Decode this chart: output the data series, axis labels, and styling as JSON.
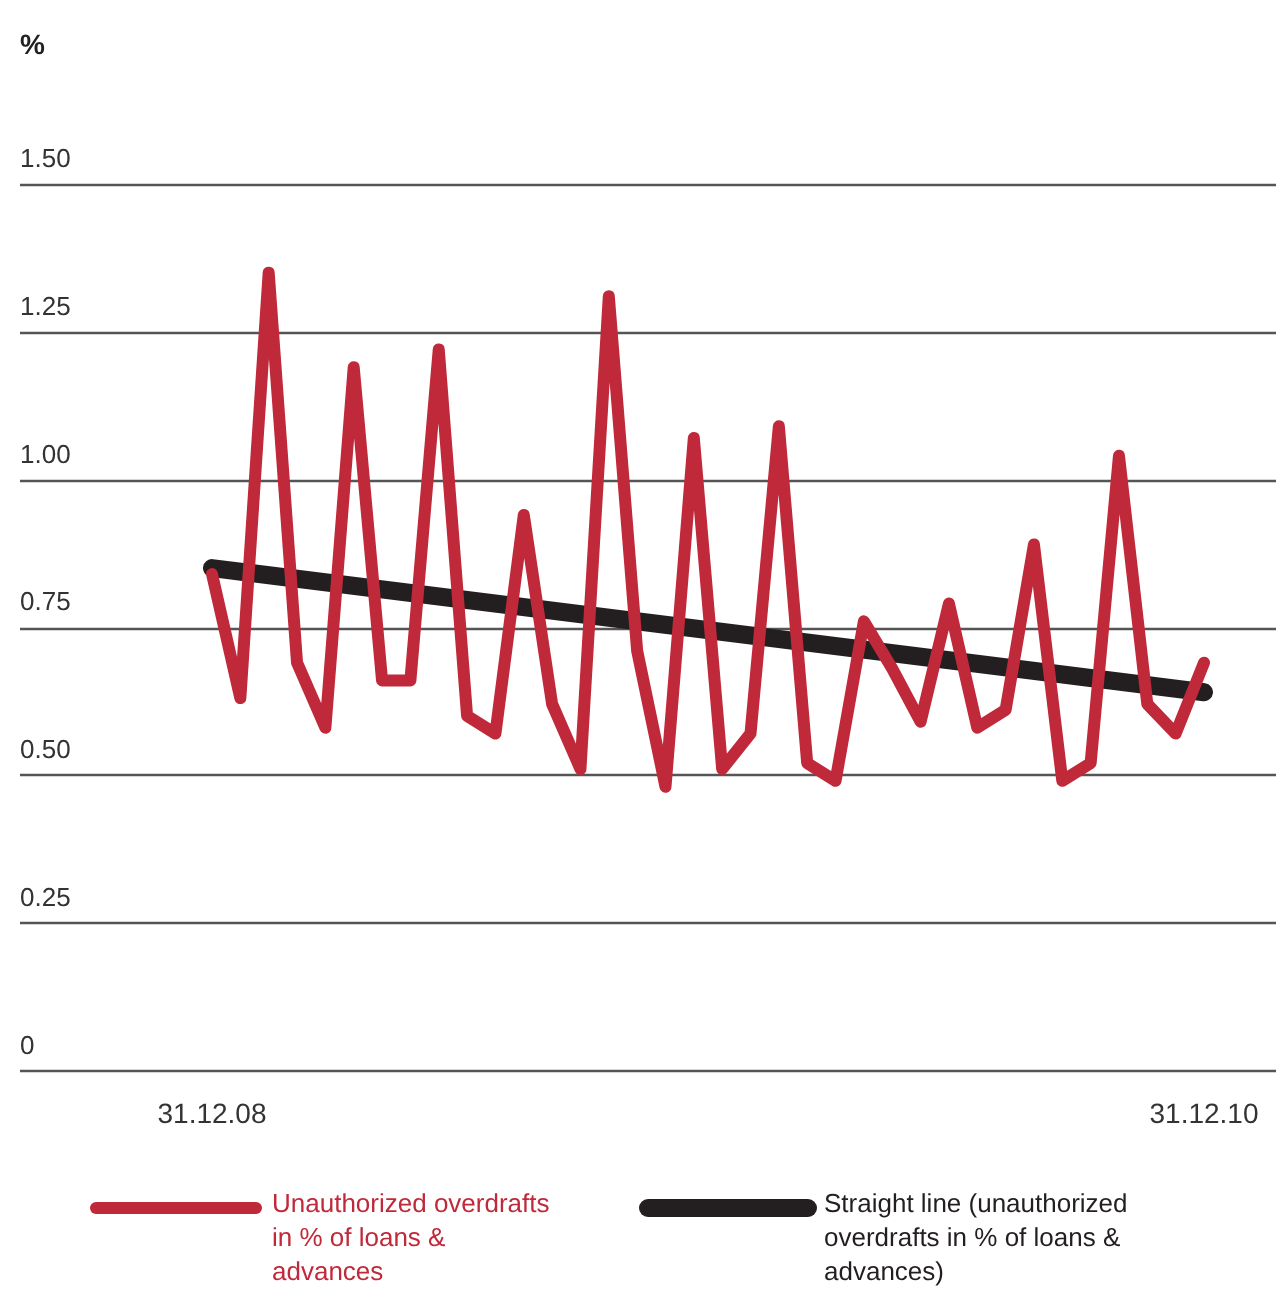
{
  "chart_data": {
    "type": "line",
    "ylabel": "%",
    "categories": [
      "31.12.08",
      null,
      null,
      null,
      null,
      null,
      null,
      null,
      null,
      null,
      null,
      null,
      null,
      null,
      null,
      null,
      null,
      null,
      null,
      null,
      null,
      null,
      null,
      null,
      null,
      null,
      null,
      null,
      null,
      null,
      null,
      null,
      null,
      null,
      null,
      "31.12.10"
    ],
    "series": [
      {
        "name": "Unauthorized overdrafts in % of loans & advances",
        "color": "#c0293a",
        "values": [
          0.84,
          0.63,
          1.35,
          0.69,
          0.58,
          1.19,
          0.66,
          0.66,
          1.22,
          0.6,
          0.57,
          0.94,
          0.62,
          0.51,
          1.31,
          0.71,
          0.48,
          1.07,
          0.51,
          0.57,
          1.09,
          0.52,
          0.49,
          0.76,
          0.68,
          0.59,
          0.79,
          0.58,
          0.61,
          0.89,
          0.49,
          0.52,
          1.04,
          0.62,
          0.57,
          0.69
        ]
      },
      {
        "name": "Straight line (unauthorized overdrafts in % of loans & advances)",
        "color": "#231f20",
        "x": [
          "31.12.08",
          "31.12.10"
        ],
        "values": [
          0.85,
          0.64
        ]
      }
    ],
    "ylim": [
      0,
      1.5
    ],
    "yticks": [
      0,
      {
        "value": 0.25,
        "label": "0.25"
      },
      {
        "value": 0.5,
        "label": "0.50"
      },
      {
        "value": 0.75,
        "label": "0.75"
      },
      {
        "value": 1,
        "label": "1.00"
      },
      {
        "value": 1.25,
        "label": "1.25"
      },
      {
        "value": 1.5,
        "label": "1.50"
      }
    ],
    "grid": "y",
    "legend": "bottom",
    "marker": "none",
    "line_style": "solid"
  }
}
